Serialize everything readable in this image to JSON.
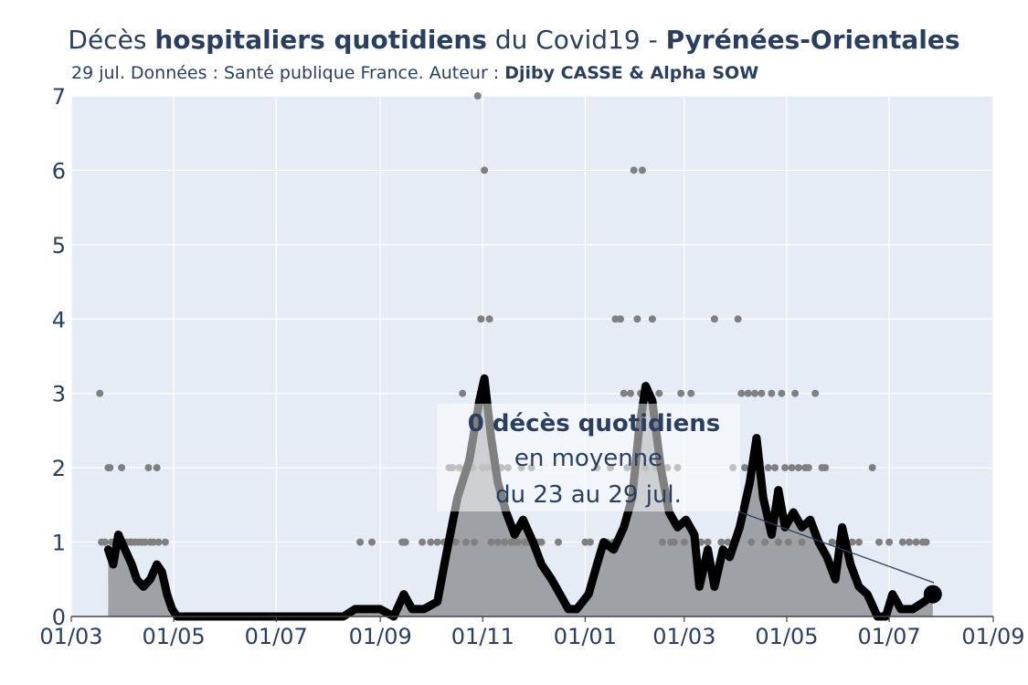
{
  "title": {
    "p1": "Décès ",
    "p2": "hospitaliers quotidiens",
    "p3": " du Covid19 - ",
    "p4": "Pyrénées-Orientales"
  },
  "subtitle": {
    "text": "29 jul. Données : Santé publique France. Auteur : ",
    "authors": "Djiby CASSE & Alpha SOW"
  },
  "annotation": {
    "line1": "0 décès quotidiens",
    "line2": "en moyenne",
    "line3": "du 23 au 29 jul."
  },
  "colors": {
    "plot_bg": "#e5ecf6",
    "grid": "#ffffff",
    "area_fill": "#9ea1a6",
    "mean_line": "#000000",
    "dots": "#808080",
    "text": "#2a3f5f"
  },
  "chart_data": {
    "type": "line",
    "title": "Décès hospitaliers quotidiens du Covid19 - Pyrénées-Orientales",
    "xlabel": "",
    "ylabel": "",
    "x_start": "2020-03-01",
    "x_end": "2021-09-01",
    "ylim": [
      0,
      7
    ],
    "x_ticks": [
      "01/03",
      "01/05",
      "01/07",
      "01/09",
      "01/11",
      "01/01",
      "01/03",
      "01/05",
      "01/07",
      "01/09"
    ],
    "y_ticks": [
      "0",
      "1",
      "2",
      "3",
      "4",
      "5",
      "6",
      "7"
    ],
    "grid": true,
    "series": [
      {
        "type": "line",
        "description": "7-day mean of daily hospital deaths (thick line, shaded area)",
        "points": [
          [
            "2020-03-23",
            0.9
          ],
          [
            "2020-03-26",
            0.7
          ],
          [
            "2020-03-29",
            1.1
          ],
          [
            "2020-04-02",
            0.9
          ],
          [
            "2020-04-06",
            0.7
          ],
          [
            "2020-04-09",
            0.5
          ],
          [
            "2020-04-13",
            0.4
          ],
          [
            "2020-04-17",
            0.5
          ],
          [
            "2020-04-21",
            0.7
          ],
          [
            "2020-04-24",
            0.6
          ],
          [
            "2020-04-27",
            0.3
          ],
          [
            "2020-04-30",
            0.1
          ],
          [
            "2020-05-03",
            0.0
          ],
          [
            "2020-08-10",
            0.0
          ],
          [
            "2020-08-17",
            0.1
          ],
          [
            "2020-08-25",
            0.1
          ],
          [
            "2020-09-01",
            0.1
          ],
          [
            "2020-09-09",
            0.0
          ],
          [
            "2020-09-15",
            0.3
          ],
          [
            "2020-09-20",
            0.1
          ],
          [
            "2020-09-27",
            0.1
          ],
          [
            "2020-10-05",
            0.2
          ],
          [
            "2020-10-10",
            0.8
          ],
          [
            "2020-10-17",
            1.6
          ],
          [
            "2020-10-24",
            2.1
          ],
          [
            "2020-10-30",
            2.9
          ],
          [
            "2020-11-02",
            3.2
          ],
          [
            "2020-11-06",
            2.4
          ],
          [
            "2020-11-10",
            1.8
          ],
          [
            "2020-11-15",
            1.4
          ],
          [
            "2020-11-20",
            1.1
          ],
          [
            "2020-11-25",
            1.3
          ],
          [
            "2020-12-01",
            1.0
          ],
          [
            "2020-12-06",
            0.7
          ],
          [
            "2020-12-12",
            0.5
          ],
          [
            "2020-12-17",
            0.3
          ],
          [
            "2020-12-22",
            0.1
          ],
          [
            "2020-12-27",
            0.1
          ],
          [
            "2021-01-03",
            0.3
          ],
          [
            "2021-01-08",
            0.7
          ],
          [
            "2021-01-12",
            1.0
          ],
          [
            "2021-01-18",
            0.9
          ],
          [
            "2021-01-24",
            1.2
          ],
          [
            "2021-01-29",
            1.6
          ],
          [
            "2021-02-02",
            2.5
          ],
          [
            "2021-02-06",
            3.1
          ],
          [
            "2021-02-10",
            2.9
          ],
          [
            "2021-02-15",
            2.0
          ],
          [
            "2021-02-20",
            1.4
          ],
          [
            "2021-02-25",
            1.2
          ],
          [
            "2021-03-02",
            1.3
          ],
          [
            "2021-03-07",
            1.1
          ],
          [
            "2021-03-10",
            0.4
          ],
          [
            "2021-03-15",
            0.9
          ],
          [
            "2021-03-19",
            0.4
          ],
          [
            "2021-03-24",
            0.9
          ],
          [
            "2021-03-28",
            0.8
          ],
          [
            "2021-04-03",
            1.2
          ],
          [
            "2021-04-09",
            1.8
          ],
          [
            "2021-04-13",
            2.4
          ],
          [
            "2021-04-17",
            1.6
          ],
          [
            "2021-04-22",
            1.1
          ],
          [
            "2021-04-26",
            1.7
          ],
          [
            "2021-04-30",
            1.2
          ],
          [
            "2021-05-05",
            1.4
          ],
          [
            "2021-05-10",
            1.2
          ],
          [
            "2021-05-15",
            1.3
          ],
          [
            "2021-05-20",
            1.0
          ],
          [
            "2021-05-25",
            0.8
          ],
          [
            "2021-05-30",
            0.5
          ],
          [
            "2021-06-03",
            1.2
          ],
          [
            "2021-06-08",
            0.7
          ],
          [
            "2021-06-13",
            0.4
          ],
          [
            "2021-06-18",
            0.3
          ],
          [
            "2021-06-24",
            0.0
          ],
          [
            "2021-06-29",
            0.0
          ],
          [
            "2021-07-03",
            0.3
          ],
          [
            "2021-07-08",
            0.1
          ],
          [
            "2021-07-15",
            0.1
          ],
          [
            "2021-07-22",
            0.2
          ],
          [
            "2021-07-27",
            0.3
          ]
        ]
      },
      {
        "type": "scatter",
        "description": "daily hospital deaths",
        "points": [
          [
            "2020-03-18",
            3
          ],
          [
            "2020-03-19",
            1
          ],
          [
            "2020-03-21",
            1
          ],
          [
            "2020-03-23",
            2
          ],
          [
            "2020-03-24",
            2
          ],
          [
            "2020-03-25",
            1
          ],
          [
            "2020-03-27",
            1
          ],
          [
            "2020-03-29",
            1
          ],
          [
            "2020-03-31",
            2
          ],
          [
            "2020-04-01",
            1
          ],
          [
            "2020-04-03",
            1
          ],
          [
            "2020-04-05",
            1
          ],
          [
            "2020-04-06",
            1
          ],
          [
            "2020-04-08",
            1
          ],
          [
            "2020-04-10",
            1
          ],
          [
            "2020-04-12",
            1
          ],
          [
            "2020-04-14",
            1
          ],
          [
            "2020-04-16",
            2
          ],
          [
            "2020-04-17",
            1
          ],
          [
            "2020-04-19",
            1
          ],
          [
            "2020-04-21",
            2
          ],
          [
            "2020-04-22",
            1
          ],
          [
            "2020-04-26",
            1
          ],
          [
            "2020-08-20",
            1
          ],
          [
            "2020-08-27",
            1
          ],
          [
            "2020-09-14",
            1
          ],
          [
            "2020-09-15",
            1
          ],
          [
            "2020-09-16",
            1
          ],
          [
            "2020-09-26",
            1
          ],
          [
            "2020-10-01",
            1
          ],
          [
            "2020-10-05",
            1
          ],
          [
            "2020-10-09",
            1
          ],
          [
            "2020-10-12",
            2
          ],
          [
            "2020-10-14",
            2
          ],
          [
            "2020-10-16",
            1
          ],
          [
            "2020-10-18",
            2
          ],
          [
            "2020-10-20",
            3
          ],
          [
            "2020-10-22",
            1
          ],
          [
            "2020-10-24",
            2
          ],
          [
            "2020-10-26",
            2
          ],
          [
            "2020-10-27",
            1
          ],
          [
            "2020-10-29",
            7
          ],
          [
            "2020-10-31",
            4
          ],
          [
            "2020-11-01",
            2
          ],
          [
            "2020-11-02",
            6
          ],
          [
            "2020-11-03",
            3
          ],
          [
            "2020-11-04",
            2
          ],
          [
            "2020-11-05",
            4
          ],
          [
            "2020-11-06",
            1
          ],
          [
            "2020-11-08",
            2
          ],
          [
            "2020-11-10",
            1
          ],
          [
            "2020-11-12",
            2
          ],
          [
            "2020-11-14",
            1
          ],
          [
            "2020-11-16",
            2
          ],
          [
            "2020-11-18",
            1
          ],
          [
            "2020-11-20",
            1
          ],
          [
            "2020-11-22",
            1
          ],
          [
            "2020-11-24",
            2
          ],
          [
            "2020-11-26",
            1
          ],
          [
            "2020-11-28",
            1
          ],
          [
            "2020-11-30",
            2
          ],
          [
            "2020-12-04",
            1
          ],
          [
            "2020-12-06",
            1
          ],
          [
            "2020-12-16",
            1
          ],
          [
            "2021-01-01",
            1
          ],
          [
            "2021-01-04",
            1
          ],
          [
            "2021-01-08",
            2
          ],
          [
            "2021-01-12",
            1
          ],
          [
            "2021-01-14",
            1
          ],
          [
            "2021-01-16",
            2
          ],
          [
            "2021-01-18",
            1
          ],
          [
            "2021-01-19",
            4
          ],
          [
            "2021-01-22",
            4
          ],
          [
            "2021-01-24",
            3
          ],
          [
            "2021-01-26",
            2
          ],
          [
            "2021-01-28",
            3
          ],
          [
            "2021-01-30",
            6
          ],
          [
            "2021-02-01",
            4
          ],
          [
            "2021-02-03",
            3
          ],
          [
            "2021-02-04",
            6
          ],
          [
            "2021-02-06",
            2
          ],
          [
            "2021-02-08",
            3
          ],
          [
            "2021-02-10",
            4
          ],
          [
            "2021-02-12",
            2
          ],
          [
            "2021-02-14",
            3
          ],
          [
            "2021-02-16",
            1
          ],
          [
            "2021-02-19",
            2
          ],
          [
            "2021-02-21",
            1
          ],
          [
            "2021-02-23",
            1
          ],
          [
            "2021-02-25",
            2
          ],
          [
            "2021-02-27",
            3
          ],
          [
            "2021-03-01",
            1
          ],
          [
            "2021-03-05",
            3
          ],
          [
            "2021-03-07",
            1
          ],
          [
            "2021-03-11",
            1
          ],
          [
            "2021-03-15",
            1
          ],
          [
            "2021-03-19",
            4
          ],
          [
            "2021-03-23",
            1
          ],
          [
            "2021-03-27",
            1
          ],
          [
            "2021-03-30",
            2
          ],
          [
            "2021-04-02",
            4
          ],
          [
            "2021-04-04",
            3
          ],
          [
            "2021-04-06",
            2
          ],
          [
            "2021-04-08",
            3
          ],
          [
            "2021-04-10",
            1
          ],
          [
            "2021-04-12",
            3
          ],
          [
            "2021-04-14",
            2
          ],
          [
            "2021-04-16",
            3
          ],
          [
            "2021-04-18",
            1
          ],
          [
            "2021-04-20",
            2
          ],
          [
            "2021-04-22",
            3
          ],
          [
            "2021-04-24",
            2
          ],
          [
            "2021-04-26",
            1
          ],
          [
            "2021-04-28",
            3
          ],
          [
            "2021-04-30",
            2
          ],
          [
            "2021-05-02",
            1
          ],
          [
            "2021-05-04",
            2
          ],
          [
            "2021-05-06",
            3
          ],
          [
            "2021-05-08",
            2
          ],
          [
            "2021-05-10",
            1
          ],
          [
            "2021-05-12",
            2
          ],
          [
            "2021-05-14",
            2
          ],
          [
            "2021-05-18",
            3
          ],
          [
            "2021-05-22",
            2
          ],
          [
            "2021-05-24",
            2
          ],
          [
            "2021-05-28",
            1
          ],
          [
            "2021-06-01",
            1
          ],
          [
            "2021-06-05",
            1
          ],
          [
            "2021-06-09",
            1
          ],
          [
            "2021-06-13",
            1
          ],
          [
            "2021-06-21",
            2
          ],
          [
            "2021-06-25",
            1
          ],
          [
            "2021-07-01",
            1
          ],
          [
            "2021-07-09",
            1
          ],
          [
            "2021-07-13",
            1
          ],
          [
            "2021-07-17",
            1
          ],
          [
            "2021-07-21",
            1
          ],
          [
            "2021-07-23",
            1
          ]
        ]
      }
    ]
  }
}
